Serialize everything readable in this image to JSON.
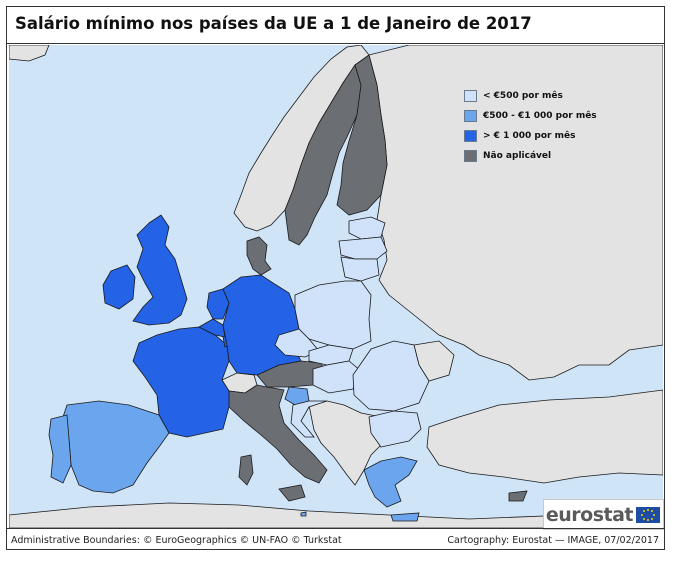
{
  "title": "Salário mínimo nos países da UE a 1 de Janeiro de 2017",
  "legend": {
    "items": [
      {
        "label": "< €500 por mês",
        "color": "#cfe2fa"
      },
      {
        "label": "€500 - €1 000 por mês",
        "color": "#6aa5ee"
      },
      {
        "label": "> € 1 000 por mês",
        "color": "#2462e6"
      },
      {
        "label": "Não aplicável",
        "color": "#6b6e73"
      }
    ]
  },
  "colors": {
    "sea": "#cfe4f7",
    "non_eu_land": "#e3e3e3",
    "border": "#1b1b1b"
  },
  "countries": {
    "above_1000": [
      "Ireland",
      "United Kingdom",
      "France",
      "Belgium",
      "Netherlands",
      "Luxembourg",
      "Germany"
    ],
    "from_500_to_1000": [
      "Spain",
      "Portugal",
      "Slovenia",
      "Greece",
      "Malta"
    ],
    "below_500": [
      "Estonia",
      "Latvia",
      "Lithuania",
      "Poland",
      "Czechia",
      "Slovakia",
      "Hungary",
      "Croatia",
      "Romania",
      "Bulgaria"
    ],
    "not_applicable": [
      "Sweden",
      "Finland",
      "Denmark",
      "Italy",
      "Austria",
      "Cyprus"
    ]
  },
  "logo": {
    "text": "eurostat"
  },
  "footer": {
    "left": "Administrative Boundaries: © EuroGeographics © UN-FAO © Turkstat",
    "right": "Cartography: Eurostat — IMAGE, 07/02/2017"
  }
}
